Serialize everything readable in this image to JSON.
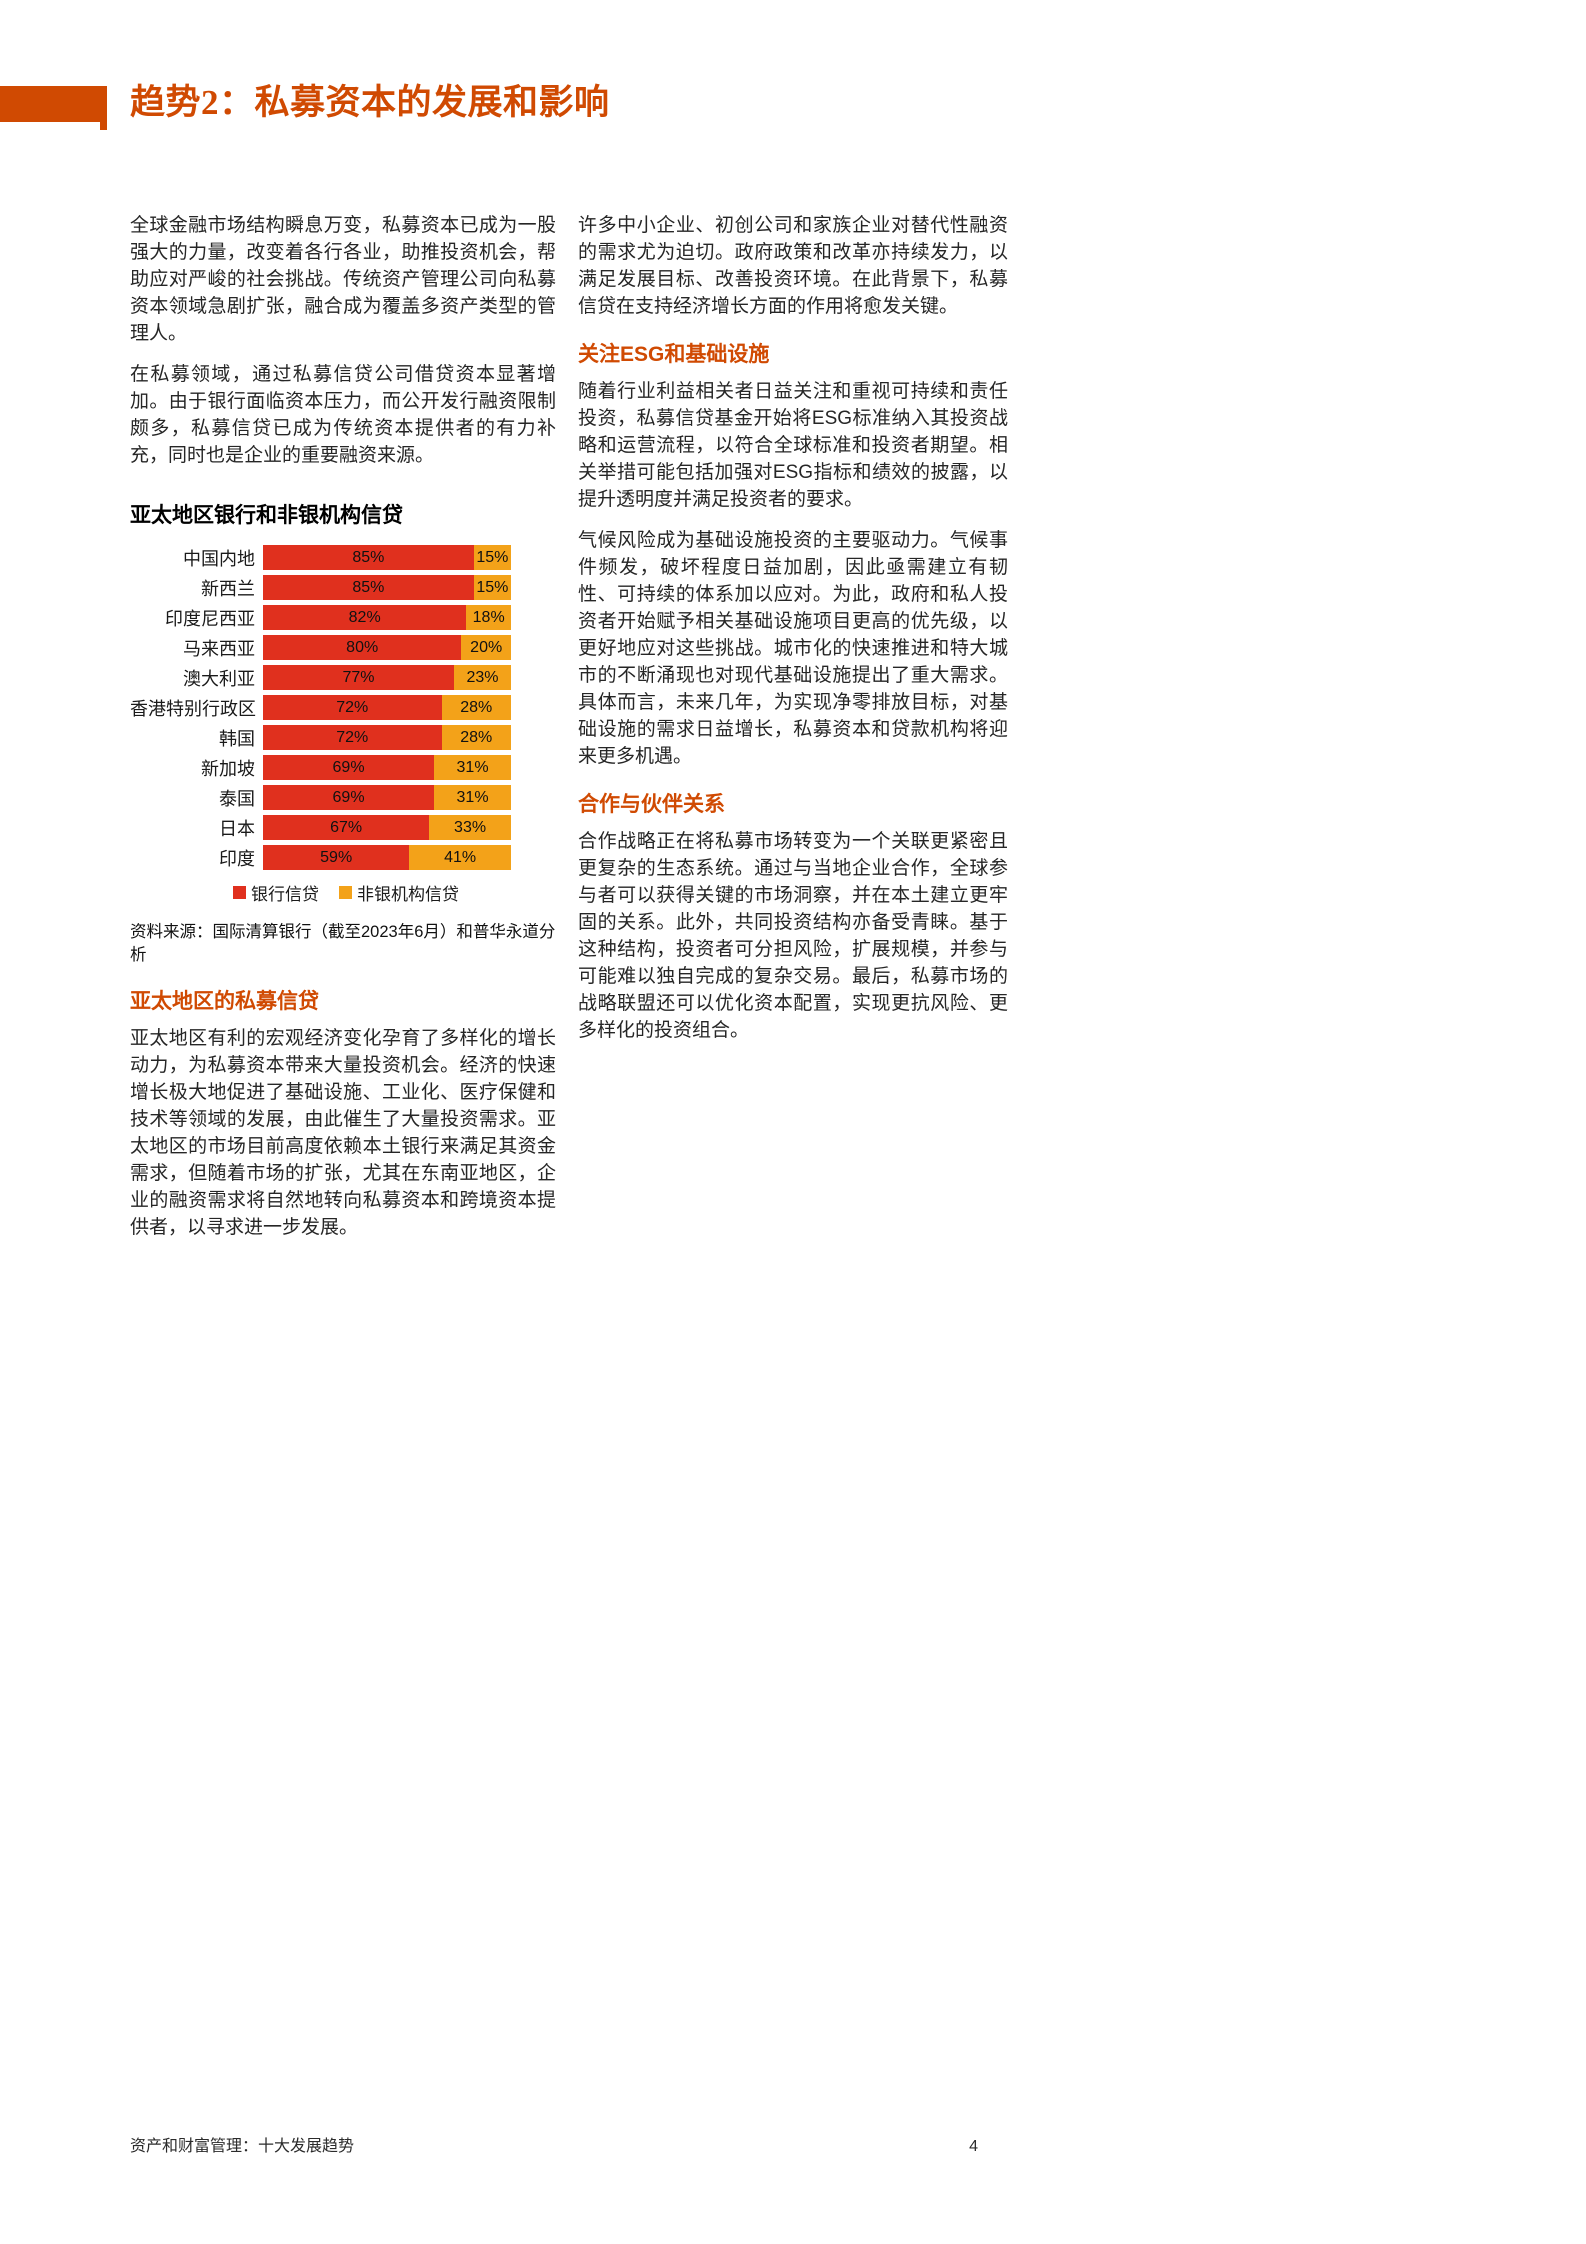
{
  "page": {
    "title": "趋势2：私募资本的发展和影响",
    "accent_color": "#d04a02",
    "footer_left": "资产和财富管理：十大发展趋势",
    "footer_page": "4"
  },
  "left_column": {
    "para1": "全球金融市场结构瞬息万变，私募资本已成为一股强大的力量，改变着各行各业，助推投资机会，帮助应对严峻的社会挑战。传统资产管理公司向私募资本领域急剧扩张，融合成为覆盖多资产类型的管理人。",
    "para2": "在私募领域，通过私募信贷公司借贷资本显著增加。由于银行面临资本压力，而公开发行融资限制颇多，私募信贷已成为传统资本提供者的有力补充，同时也是企业的重要融资来源。",
    "section2_heading": "亚太地区的私募信贷",
    "section2_para": "亚太地区有利的宏观经济变化孕育了多样化的增长动力，为私募资本带来大量投资机会。经济的快速增长极大地促进了基础设施、工业化、医疗保健和技术等领域的发展，由此催生了大量投资需求。亚太地区的市场目前高度依赖本土银行来满足其资金需求，但随着市场的扩张，尤其在东南亚地区，企业的融资需求将自然地转向私募资本和跨境资本提供者，以寻求进一步发展。"
  },
  "right_column": {
    "para1": "许多中小企业、初创公司和家族企业对替代性融资的需求尤为迫切。政府政策和改革亦持续发力，以满足发展目标、改善投资环境。在此背景下，私募信贷在支持经济增长方面的作用将愈发关键。",
    "heading_esg": "关注ESG和基础设施",
    "esg_para1": "随着行业利益相关者日益关注和重视可持续和责任投资，私募信贷基金开始将ESG标准纳入其投资战略和运营流程，以符合全球标准和投资者期望。相关举措可能包括加强对ESG指标和绩效的披露，以提升透明度并满足投资者的要求。",
    "esg_para2": "气候风险成为基础设施投资的主要驱动力。气候事件频发，破坏程度日益加剧，因此亟需建立有韧性、可持续的体系加以应对。为此，政府和私人投资者开始赋予相关基础设施项目更高的优先级，以更好地应对这些挑战。城市化的快速推进和特大城市的不断涌现也对现代基础设施提出了重大需求。具体而言，未来几年，为实现净零排放目标，对基础设施的需求日益增长，私募资本和贷款机构将迎来更多机遇。",
    "heading_partner": "合作与伙伴关系",
    "partner_para": "合作战略正在将私募市场转变为一个关联更紧密且更复杂的生态系统。通过与当地企业合作，全球参与者可以获得关键的市场洞察，并在本土建立更牢固的关系。此外，共同投资结构亦备受青睐。基于这种结构，投资者可分担风险，扩展规模，并参与可能难以独自完成的复杂交易。最后，私募市场的战略联盟还可以优化资本配置，实现更抗风险、更多样化的投资组合。"
  },
  "chart_data": {
    "type": "bar",
    "stacked": true,
    "orientation": "horizontal",
    "title": "亚太地区银行和非银机构信贷",
    "categories": [
      "中国内地",
      "新西兰",
      "印度尼西亚",
      "马来西亚",
      "澳大利亚",
      "香港特别行政区",
      "韩国",
      "新加坡",
      "泰国",
      "日本",
      "印度"
    ],
    "series": [
      {
        "name": "银行信贷",
        "color": "#e0301e",
        "values": [
          85,
          85,
          82,
          80,
          77,
          72,
          72,
          69,
          69,
          67,
          59
        ]
      },
      {
        "name": "非银机构信贷",
        "color": "#f3a219",
        "values": [
          15,
          15,
          18,
          20,
          23,
          28,
          28,
          31,
          31,
          33,
          41
        ]
      }
    ],
    "value_suffix": "%",
    "xlim": [
      0,
      100
    ],
    "grid": false,
    "legend_position": "bottom",
    "source": "资料来源：国际清算银行（截至2023年6月）和普华永道分析"
  }
}
